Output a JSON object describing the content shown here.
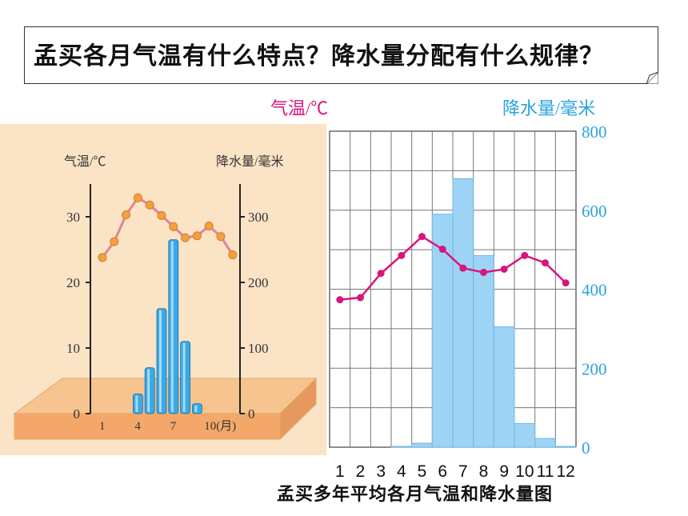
{
  "question": "孟买各月气温有什么特点？降水量分配有什么规律？",
  "caption": "孟买多年平均各月气温和降水量图",
  "chart_data": [
    {
      "type": "bar+line",
      "ylabel_left": "气温/℃",
      "ylabel_right": "降水量/毫米",
      "left_ticks": [
        "30",
        "20",
        "10",
        "0"
      ],
      "right_ticks": [
        "300",
        "200",
        "100",
        "0"
      ],
      "x_ticks": [
        "1",
        "4",
        "7",
        "10(月)"
      ],
      "temp_ylim": [
        0,
        35
      ],
      "precip_ylim": [
        0,
        350
      ],
      "months": [
        1,
        2,
        3,
        4,
        5,
        6,
        7,
        8,
        9,
        10,
        11,
        12
      ],
      "temperature": [
        23.8,
        26.2,
        30.3,
        32.9,
        31.8,
        30.2,
        28.5,
        26.8,
        27.1,
        28.6,
        27.0,
        24.2
      ],
      "precipitation": [
        0,
        0,
        0,
        30,
        70,
        160,
        265,
        110,
        15,
        0,
        0,
        0
      ],
      "colors": {
        "temp_line": "#e0859a",
        "temp_marker": "#f2a23c",
        "bars": "#3aa9e6",
        "base": "#f7c48a"
      }
    },
    {
      "type": "bar+line",
      "ylabel_left": "气温/℃",
      "ylabel_right": "降水量/毫米",
      "right_ticks": [
        "800",
        "600",
        "400",
        "200",
        "0"
      ],
      "x_labels": [
        "1",
        "2",
        "3",
        "4",
        "5",
        "6",
        "7",
        "8",
        "9",
        "10",
        "11",
        "12"
      ],
      "precip_ylim": [
        0,
        800
      ],
      "months": [
        1,
        2,
        3,
        4,
        5,
        6,
        7,
        8,
        9,
        10,
        11,
        12
      ],
      "precipitation": [
        0,
        0,
        0,
        2,
        10,
        590,
        680,
        485,
        305,
        60,
        22,
        2
      ],
      "temperature": [
        24.0,
        24.2,
        26.5,
        28.2,
        30.0,
        28.8,
        27.0,
        26.6,
        26.9,
        28.2,
        27.5,
        25.6
      ],
      "temp_ylim": [
        10,
        40
      ],
      "colors": {
        "temp_line": "#d6177b",
        "bars": "#9dd3f5",
        "axis_label_left": "#d6177b",
        "axis_label_right": "#2aa3de",
        "grid": "#555555"
      }
    }
  ]
}
